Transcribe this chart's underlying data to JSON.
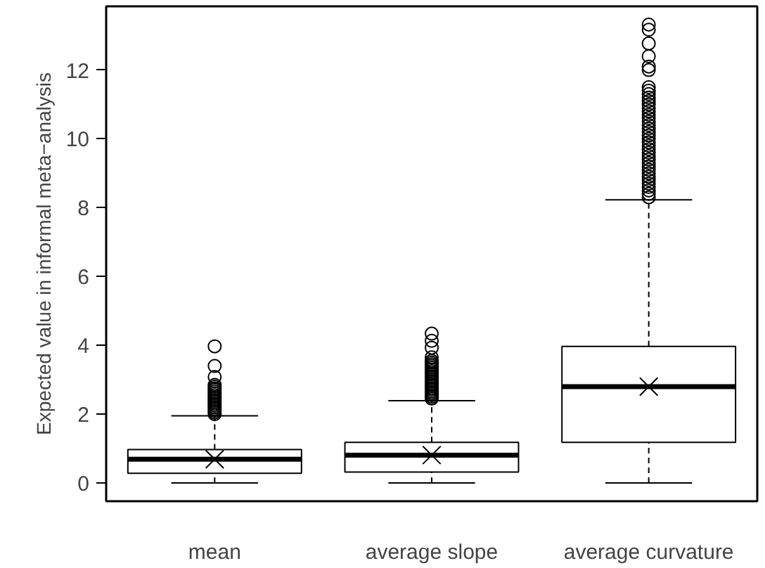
{
  "chart_data": {
    "type": "box",
    "ylabel": "Expected value in informal meta−analysis",
    "categories": [
      "mean",
      "average slope",
      "average curvature"
    ],
    "boxes": [
      {
        "low": 0,
        "q1": 0.28,
        "median": 0.69,
        "q3": 0.97,
        "high": 1.95,
        "mean": 0.69,
        "outliers": [
          2.0,
          2.05,
          2.1,
          2.15,
          2.2,
          2.25,
          2.3,
          2.35,
          2.4,
          2.45,
          2.5,
          2.55,
          2.6,
          2.65,
          2.7,
          2.75,
          2.8,
          2.85,
          3.08,
          3.4,
          3.97
        ]
      },
      {
        "low": 0,
        "q1": 0.32,
        "median": 0.81,
        "q3": 1.18,
        "high": 2.39,
        "mean": 0.81,
        "outliers": [
          2.45,
          2.5,
          2.55,
          2.6,
          2.65,
          2.7,
          2.75,
          2.8,
          2.85,
          2.9,
          2.95,
          3.0,
          3.05,
          3.1,
          3.15,
          3.2,
          3.25,
          3.3,
          3.35,
          3.4,
          3.45,
          3.5,
          3.55,
          3.65,
          3.93,
          4.13,
          4.34
        ]
      },
      {
        "low": 0,
        "q1": 1.18,
        "median": 2.8,
        "q3": 3.97,
        "high": 8.23,
        "mean": 2.8,
        "outliers": [
          8.3,
          8.4,
          8.5,
          8.6,
          8.7,
          8.8,
          8.9,
          9.0,
          9.1,
          9.2,
          9.3,
          9.4,
          9.5,
          9.6,
          9.7,
          9.8,
          9.9,
          10.0,
          10.1,
          10.2,
          10.3,
          10.4,
          10.5,
          10.6,
          10.7,
          10.8,
          10.9,
          11.0,
          11.1,
          11.2,
          11.3,
          11.4,
          11.5,
          12.0,
          12.1,
          12.4,
          12.77,
          13.17,
          13.32
        ]
      }
    ],
    "ylim": [
      -0.53,
      13.85
    ],
    "yticks": [
      0,
      2,
      4,
      6,
      8,
      10,
      12
    ],
    "grid": false
  }
}
